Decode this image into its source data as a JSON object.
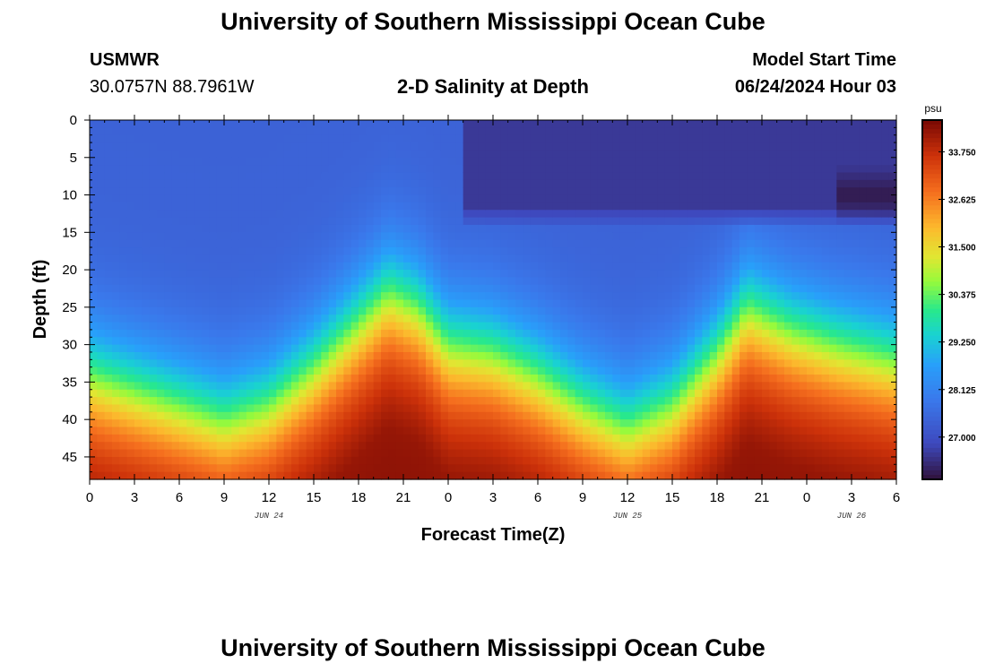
{
  "header": {
    "title": "University of Southern Mississippi Ocean Cube",
    "station": "USMWR",
    "coords": "30.0757N  88.7961W",
    "subtitle": "2-D Salinity at Depth",
    "model_start_label": "Model Start Time",
    "model_start_value": "06/24/2024 Hour 03"
  },
  "footer": {
    "title": "University of Southern Mississippi Ocean Cube"
  },
  "chart_data": {
    "type": "heatmap",
    "title": "2-D Salinity at Depth",
    "xlabel": "Forecast Time(Z)",
    "ylabel": "Depth (ft)",
    "x_tick_labels": [
      "0",
      "3",
      "6",
      "9",
      "12",
      "15",
      "18",
      "21",
      "0",
      "3",
      "6",
      "9",
      "12",
      "15",
      "18",
      "21",
      "0",
      "3",
      "6"
    ],
    "date_labels": [
      {
        "text": "JUN 24",
        "hour_index": 12
      },
      {
        "text": "JUN 25",
        "hour_index": 36
      },
      {
        "text": "JUN 26",
        "hour_index": 51
      }
    ],
    "x_range_hours": [
      0,
      54
    ],
    "y_ticks": [
      0,
      5,
      10,
      15,
      20,
      25,
      30,
      35,
      40,
      45
    ],
    "y_range_ft": [
      0,
      48
    ],
    "colorbar": {
      "unit": "psu",
      "tick_labels": [
        "33.750",
        "32.625",
        "31.500",
        "30.375",
        "29.250",
        "28.125",
        "27.000"
      ],
      "tick_values": [
        33.75,
        32.625,
        31.5,
        30.375,
        29.25,
        28.125,
        27.0
      ],
      "range": [
        26.0,
        34.5
      ]
    },
    "grid": false,
    "approx_field": {
      "description": "Approximate salinity (psu) read from color; halocline depth (ft) vs forecast hour",
      "halocline_control_points": [
        {
          "hour": 0,
          "depth": 34
        },
        {
          "hour": 3,
          "depth": 36
        },
        {
          "hour": 6,
          "depth": 38
        },
        {
          "hour": 9,
          "depth": 40
        },
        {
          "hour": 12,
          "depth": 38
        },
        {
          "hour": 15,
          "depth": 33
        },
        {
          "hour": 18,
          "depth": 27
        },
        {
          "hour": 20,
          "depth": 23
        },
        {
          "hour": 22,
          "depth": 25
        },
        {
          "hour": 24,
          "depth": 30
        },
        {
          "hour": 27,
          "depth": 31
        },
        {
          "hour": 30,
          "depth": 34
        },
        {
          "hour": 33,
          "depth": 38
        },
        {
          "hour": 36,
          "depth": 41
        },
        {
          "hour": 39,
          "depth": 38
        },
        {
          "hour": 42,
          "depth": 31
        },
        {
          "hour": 44,
          "depth": 25
        },
        {
          "hour": 47,
          "depth": 28
        },
        {
          "hour": 50,
          "depth": 30
        },
        {
          "hour": 54,
          "depth": 32
        }
      ],
      "surface_salinity": 27.4,
      "bottom_salinity": 33.4,
      "fresh_surface_patches": [
        {
          "hour_from": 25,
          "hour_to": 54,
          "depth_max": 14,
          "salinity": 26.6
        },
        {
          "hour_from": 50,
          "hour_to": 54,
          "depth_center": 10,
          "salinity": 26.1
        }
      ]
    }
  }
}
